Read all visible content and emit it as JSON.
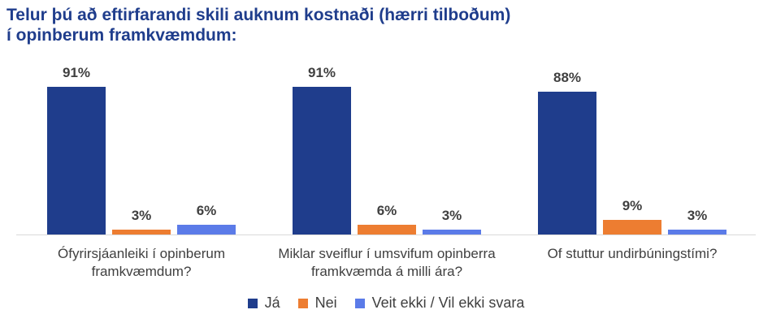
{
  "chart_data": {
    "type": "bar",
    "title": "Telur þú að eftirfarandi skili auknum kostnaði (hærri tilboðum) í opinberum framkvæmdum:",
    "title_lines": [
      "Telur þú að eftirfarandi skili auknum kostnaði (hærri tilboðum)",
      "í opinberum framkvæmdum:"
    ],
    "categories": [
      [
        "Ófyrirsjáanleiki í opinberum",
        "framkvæmdum?"
      ],
      [
        "Miklar sveiflur í umsvifum opinberra",
        "framkvæmda á milli ára?"
      ],
      [
        "Of stuttur undirbúningstími?"
      ]
    ],
    "series": [
      {
        "name": "Já",
        "values": [
          91,
          91,
          88
        ],
        "color": "#1f3d8c"
      },
      {
        "name": "Nei",
        "values": [
          3,
          6,
          9
        ],
        "color": "#ed7d31"
      },
      {
        "name": "Veit ekki / Vil ekki svara",
        "values": [
          6,
          3,
          3
        ],
        "color": "#5b7be8"
      }
    ],
    "value_suffix": "%",
    "ylim": [
      0,
      100
    ],
    "grid": false,
    "legend_position": "bottom"
  }
}
